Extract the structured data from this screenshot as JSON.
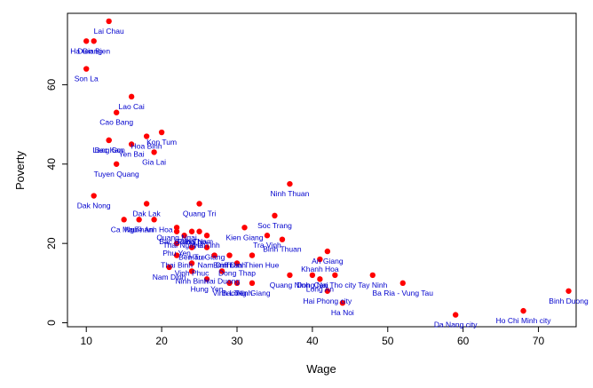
{
  "chart_data": {
    "type": "scatter",
    "title": "",
    "xlabel": "Wage",
    "ylabel": "Poverty",
    "xlim": [
      7.5,
      75
    ],
    "ylim": [
      -1,
      78
    ],
    "xticks": [
      10,
      20,
      30,
      40,
      50,
      60,
      70
    ],
    "yticks": [
      0,
      20,
      40,
      60
    ],
    "point_color": "#ff0000",
    "label_color": "#0000cd",
    "points": [
      {
        "x": 13,
        "y": 76,
        "label": "Lai Chau",
        "pos": "below"
      },
      {
        "x": 10,
        "y": 71,
        "label": "Ha Giang",
        "pos": "below"
      },
      {
        "x": 11,
        "y": 71,
        "label": "Dien Bien",
        "pos": "below"
      },
      {
        "x": 10,
        "y": 64,
        "label": "Son La",
        "pos": "below"
      },
      {
        "x": 16,
        "y": 57,
        "label": "Lao Cai",
        "pos": "below"
      },
      {
        "x": 14,
        "y": 53,
        "label": "Cao Bang",
        "pos": "below"
      },
      {
        "x": 20,
        "y": 48,
        "label": "Kon Tum",
        "pos": "below"
      },
      {
        "x": 18,
        "y": 47,
        "label": "Hoa Binh",
        "pos": "below"
      },
      {
        "x": 13,
        "y": 46,
        "label": "Bac Kan",
        "pos": "below"
      },
      {
        "x": 13,
        "y": 46,
        "label": "Lang Son",
        "pos": "below"
      },
      {
        "x": 16,
        "y": 45,
        "label": "Yen Bai",
        "pos": "below"
      },
      {
        "x": 19,
        "y": 43,
        "label": "Gia Lai",
        "pos": "below"
      },
      {
        "x": 14,
        "y": 40,
        "label": "Tuyen Quang",
        "pos": "below"
      },
      {
        "x": 37,
        "y": 35,
        "label": "Ninh Thuan",
        "pos": "below"
      },
      {
        "x": 11,
        "y": 32,
        "label": "Dak Nong",
        "pos": "below"
      },
      {
        "x": 18,
        "y": 30,
        "label": "Dak Lak",
        "pos": "below"
      },
      {
        "x": 25,
        "y": 30,
        "label": "Quang Tri",
        "pos": "below"
      },
      {
        "x": 35,
        "y": 27,
        "label": "Soc Trang",
        "pos": "below"
      },
      {
        "x": 17,
        "y": 26,
        "label": "Nghe An",
        "pos": "below"
      },
      {
        "x": 15,
        "y": 26,
        "label": "Ca Mau",
        "pos": "below"
      },
      {
        "x": 19,
        "y": 26,
        "label": "Thanh Hoa",
        "pos": "below"
      },
      {
        "x": 31,
        "y": 24,
        "label": "Kien Giang",
        "pos": "below"
      },
      {
        "x": 22,
        "y": 24,
        "label": "Quang Ngai",
        "pos": "below"
      },
      {
        "x": 22,
        "y": 23,
        "label": "Bac Giang",
        "pos": "below"
      },
      {
        "x": 24,
        "y": 23,
        "label": "Phu Tho",
        "pos": "below"
      },
      {
        "x": 25,
        "y": 23,
        "label": "Ha Nam",
        "pos": "below"
      },
      {
        "x": 23,
        "y": 22,
        "label": "Thai Nguyen",
        "pos": "below"
      },
      {
        "x": 26,
        "y": 22,
        "label": "Ha Tinh",
        "pos": "below"
      },
      {
        "x": 34,
        "y": 22,
        "label": "Tra Vinh",
        "pos": "below"
      },
      {
        "x": 36,
        "y": 21,
        "label": "Binh Thuan",
        "pos": "below"
      },
      {
        "x": 22,
        "y": 20,
        "label": "Phu Yen",
        "pos": "below"
      },
      {
        "x": 24,
        "y": 19,
        "label": "Ben Tre",
        "pos": "below"
      },
      {
        "x": 26,
        "y": 19,
        "label": "Hau Giang",
        "pos": "below"
      },
      {
        "x": 42,
        "y": 18,
        "label": "An Giang",
        "pos": "below"
      },
      {
        "x": 22,
        "y": 17,
        "label": "Thai Binh",
        "pos": "below"
      },
      {
        "x": 27,
        "y": 17,
        "label": "Nam Dinh",
        "pos": "below"
      },
      {
        "x": 29,
        "y": 17,
        "label": "Binh Dinh",
        "pos": "below"
      },
      {
        "x": 32,
        "y": 17,
        "label": "Thua Thien Hue",
        "pos": "below"
      },
      {
        "x": 41,
        "y": 16,
        "label": "Khanh Hoa",
        "pos": "below"
      },
      {
        "x": 24,
        "y": 15,
        "label": "Vinh Phuc",
        "pos": "below"
      },
      {
        "x": 30,
        "y": 15,
        "label": "Dong Thap",
        "pos": "below"
      },
      {
        "x": 21,
        "y": 14,
        "label": "Nam Dinh",
        "pos": "below"
      },
      {
        "x": 24,
        "y": 13,
        "label": "Ninh Binh",
        "pos": "below"
      },
      {
        "x": 28,
        "y": 13,
        "label": "Hai Duong",
        "pos": "below"
      },
      {
        "x": 37,
        "y": 12,
        "label": "Quang Ninh",
        "pos": "below"
      },
      {
        "x": 40,
        "y": 12,
        "label": "Dong Nai",
        "pos": "below"
      },
      {
        "x": 43,
        "y": 12,
        "label": "Can Tho city",
        "pos": "below"
      },
      {
        "x": 48,
        "y": 12,
        "label": "Tay Ninh",
        "pos": "below"
      },
      {
        "x": 26,
        "y": 11,
        "label": "Hung Yen",
        "pos": "below"
      },
      {
        "x": 41,
        "y": 11,
        "label": "Long An",
        "pos": "below"
      },
      {
        "x": 52,
        "y": 10,
        "label": "Ba Ria - Vung Tau",
        "pos": "below"
      },
      {
        "x": 29,
        "y": 10,
        "label": "Vinh Long",
        "pos": "below"
      },
      {
        "x": 30,
        "y": 10,
        "label": "Bac Ninh",
        "pos": "below"
      },
      {
        "x": 32,
        "y": 10,
        "label": "Tien Giang",
        "pos": "below"
      },
      {
        "x": 42,
        "y": 8,
        "label": "Hai Phong city",
        "pos": "below"
      },
      {
        "x": 74,
        "y": 8,
        "label": "Binh Duong",
        "pos": "below"
      },
      {
        "x": 44,
        "y": 5,
        "label": "Ha Noi",
        "pos": "below"
      },
      {
        "x": 68,
        "y": 3,
        "label": "Ho Chi Minh city",
        "pos": "below"
      },
      {
        "x": 59,
        "y": 2,
        "label": "Da Nang city",
        "pos": "below"
      }
    ]
  }
}
